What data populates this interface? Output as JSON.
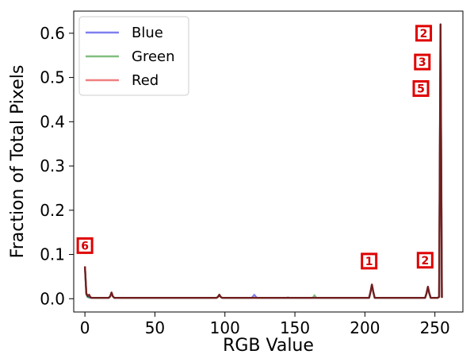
{
  "chart_data": {
    "type": "line",
    "title": "",
    "xlabel": "RGB Value",
    "ylabel": "Fraction of Total Pixels",
    "xlim": [
      -8,
      270
    ],
    "ylim": [
      -0.03,
      0.65
    ],
    "xticks": [
      0,
      50,
      100,
      150,
      200,
      250
    ],
    "yticks": [
      0.0,
      0.1,
      0.2,
      0.3,
      0.4,
      0.5,
      0.6
    ],
    "ytick_labels": [
      "0.0",
      "0.1",
      "0.2",
      "0.3",
      "0.4",
      "0.5",
      "0.6"
    ],
    "grid": false,
    "legend": {
      "position": "top-left"
    },
    "series": [
      {
        "name": "Blue",
        "color": "#0000e0",
        "points": [
          [
            0,
            0.073
          ],
          [
            1,
            0.01
          ],
          [
            2,
            0.004
          ],
          [
            3,
            0.003
          ],
          [
            4,
            0.002
          ],
          [
            17,
            0.002
          ],
          [
            18,
            0.005
          ],
          [
            19,
            0.014
          ],
          [
            20,
            0.005
          ],
          [
            21,
            0.002
          ],
          [
            94,
            0.002
          ],
          [
            95,
            0.004
          ],
          [
            96,
            0.009
          ],
          [
            97,
            0.004
          ],
          [
            98,
            0.002
          ],
          [
            119,
            0.002
          ],
          [
            120,
            0.005
          ],
          [
            121,
            0.009
          ],
          [
            122,
            0.005
          ],
          [
            123,
            0.002
          ],
          [
            164,
            0.002
          ],
          [
            203,
            0.002
          ],
          [
            204,
            0.015
          ],
          [
            205,
            0.032
          ],
          [
            206,
            0.015
          ],
          [
            207,
            0.002
          ],
          [
            243,
            0.002
          ],
          [
            244,
            0.012
          ],
          [
            245,
            0.027
          ],
          [
            246,
            0.012
          ],
          [
            247,
            0.002
          ],
          [
            252,
            0.002
          ],
          [
            253,
            0.004
          ],
          [
            254,
            0.62
          ]
        ]
      },
      {
        "name": "Green",
        "color": "#008000",
        "points": [
          [
            0,
            0.073
          ],
          [
            1,
            0.01
          ],
          [
            2,
            0.004
          ],
          [
            3,
            0.003
          ],
          [
            4,
            0.002
          ],
          [
            17,
            0.002
          ],
          [
            18,
            0.005
          ],
          [
            19,
            0.014
          ],
          [
            20,
            0.005
          ],
          [
            21,
            0.002
          ],
          [
            94,
            0.002
          ],
          [
            95,
            0.004
          ],
          [
            96,
            0.009
          ],
          [
            97,
            0.004
          ],
          [
            98,
            0.002
          ],
          [
            140,
            0.002
          ],
          [
            145,
            0.003
          ],
          [
            163,
            0.003
          ],
          [
            164,
            0.008
          ],
          [
            165,
            0.003
          ],
          [
            166,
            0.002
          ],
          [
            203,
            0.002
          ],
          [
            204,
            0.015
          ],
          [
            205,
            0.032
          ],
          [
            206,
            0.015
          ],
          [
            207,
            0.002
          ],
          [
            243,
            0.002
          ],
          [
            244,
            0.012
          ],
          [
            245,
            0.027
          ],
          [
            246,
            0.012
          ],
          [
            247,
            0.002
          ],
          [
            252,
            0.002
          ],
          [
            253,
            0.004
          ],
          [
            254,
            0.62
          ]
        ]
      },
      {
        "name": "Red",
        "color": "#e00000",
        "points": [
          [
            0,
            0.073
          ],
          [
            1,
            0.012
          ],
          [
            2,
            0.006
          ],
          [
            3,
            0.009
          ],
          [
            4,
            0.003
          ],
          [
            5,
            0.002
          ],
          [
            17,
            0.002
          ],
          [
            18,
            0.005
          ],
          [
            19,
            0.014
          ],
          [
            20,
            0.005
          ],
          [
            21,
            0.002
          ],
          [
            94,
            0.002
          ],
          [
            95,
            0.004
          ],
          [
            96,
            0.009
          ],
          [
            97,
            0.004
          ],
          [
            98,
            0.002
          ],
          [
            164,
            0.002
          ],
          [
            203,
            0.002
          ],
          [
            204,
            0.015
          ],
          [
            205,
            0.032
          ],
          [
            206,
            0.015
          ],
          [
            207,
            0.002
          ],
          [
            243,
            0.002
          ],
          [
            244,
            0.012
          ],
          [
            245,
            0.027
          ],
          [
            246,
            0.012
          ],
          [
            247,
            0.002
          ],
          [
            252,
            0.002
          ],
          [
            253,
            0.004
          ],
          [
            254,
            0.62
          ]
        ]
      }
    ],
    "overlay_color": "#6b1a1a",
    "annotations": [
      {
        "text": "2",
        "x": 242,
        "y": 0.6
      },
      {
        "text": "3",
        "x": 241,
        "y": 0.535
      },
      {
        "text": "5",
        "x": 240,
        "y": 0.475
      },
      {
        "text": "6",
        "x": 0,
        "y": 0.12
      },
      {
        "text": "1",
        "x": 203,
        "y": 0.085
      },
      {
        "text": "2",
        "x": 243,
        "y": 0.087
      }
    ]
  }
}
